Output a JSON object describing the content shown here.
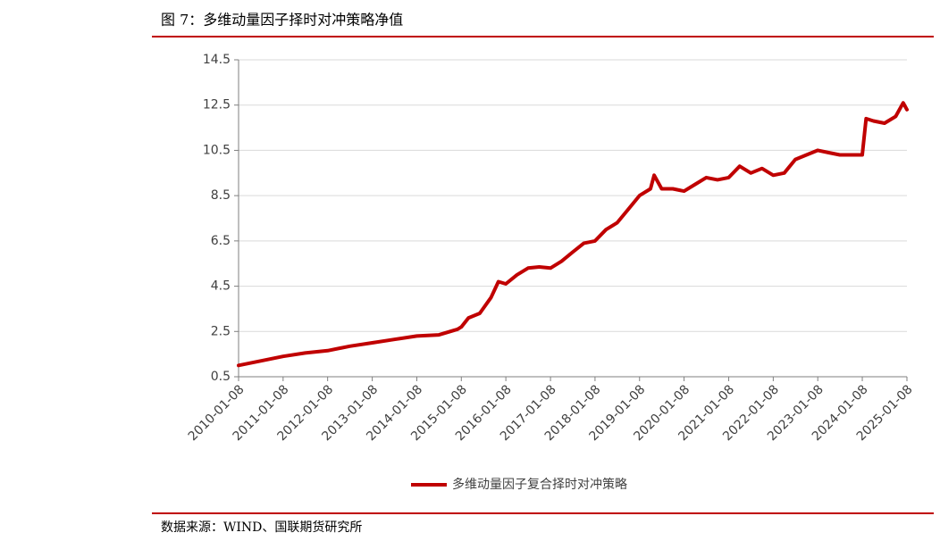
{
  "chart_data": {
    "type": "line",
    "title": "图 7：多维动量因子择时对冲策略净值",
    "source": "数据来源：WIND、国联期货研究所",
    "x": [
      "2010-01-08",
      "2010-07-08",
      "2011-01-08",
      "2011-07-08",
      "2012-01-08",
      "2012-07-08",
      "2013-01-08",
      "2013-07-08",
      "2014-01-08",
      "2014-07-08",
      "2014-12-08",
      "2015-01-08",
      "2015-03-08",
      "2015-06-08",
      "2015-09-08",
      "2015-11-08",
      "2016-01-08",
      "2016-04-08",
      "2016-07-08",
      "2016-10-08",
      "2017-01-08",
      "2017-04-08",
      "2017-07-08",
      "2017-10-08",
      "2018-01-08",
      "2018-04-08",
      "2018-07-08",
      "2018-10-08",
      "2019-01-08",
      "2019-04-08",
      "2019-05-08",
      "2019-07-08",
      "2019-10-08",
      "2020-01-08",
      "2020-04-08",
      "2020-07-08",
      "2020-10-08",
      "2021-01-08",
      "2021-04-08",
      "2021-07-08",
      "2021-10-08",
      "2022-01-08",
      "2022-04-08",
      "2022-07-08",
      "2022-10-08",
      "2023-01-08",
      "2023-04-08",
      "2023-07-08",
      "2023-10-08",
      "2024-01-08",
      "2024-02-08",
      "2024-04-08",
      "2024-07-08",
      "2024-10-08",
      "2024-12-08",
      "2025-01-08"
    ],
    "series": [
      {
        "name": "多维动量因子复合择时对冲策略",
        "color": "#c00000",
        "values": [
          1.0,
          1.2,
          1.4,
          1.55,
          1.65,
          1.85,
          2.0,
          2.15,
          2.3,
          2.35,
          2.6,
          2.7,
          3.1,
          3.3,
          4.0,
          4.7,
          4.6,
          5.0,
          5.3,
          5.35,
          5.3,
          5.6,
          6.0,
          6.4,
          6.5,
          7.0,
          7.3,
          7.9,
          8.5,
          8.8,
          9.4,
          8.8,
          8.8,
          8.7,
          9.0,
          9.3,
          9.2,
          9.3,
          9.8,
          9.5,
          9.7,
          9.4,
          9.5,
          10.1,
          10.3,
          10.5,
          10.4,
          10.3,
          10.3,
          10.3,
          11.9,
          11.8,
          11.7,
          12.0,
          12.6,
          12.3
        ]
      }
    ],
    "xlim": [
      "2010-01-08",
      "2025-01-08"
    ],
    "xticks": [
      "2010-01-08",
      "2011-01-08",
      "2012-01-08",
      "2013-01-08",
      "2014-01-08",
      "2015-01-08",
      "2016-01-08",
      "2017-01-08",
      "2018-01-08",
      "2019-01-08",
      "2020-01-08",
      "2021-01-08",
      "2022-01-08",
      "2023-01-08",
      "2024-01-08",
      "2025-01-08"
    ],
    "ylim": [
      0.5,
      14.5
    ],
    "yticks": [
      0.5,
      2.5,
      4.5,
      6.5,
      8.5,
      10.5,
      12.5,
      14.5
    ],
    "grid": true,
    "legend": "bottom"
  }
}
